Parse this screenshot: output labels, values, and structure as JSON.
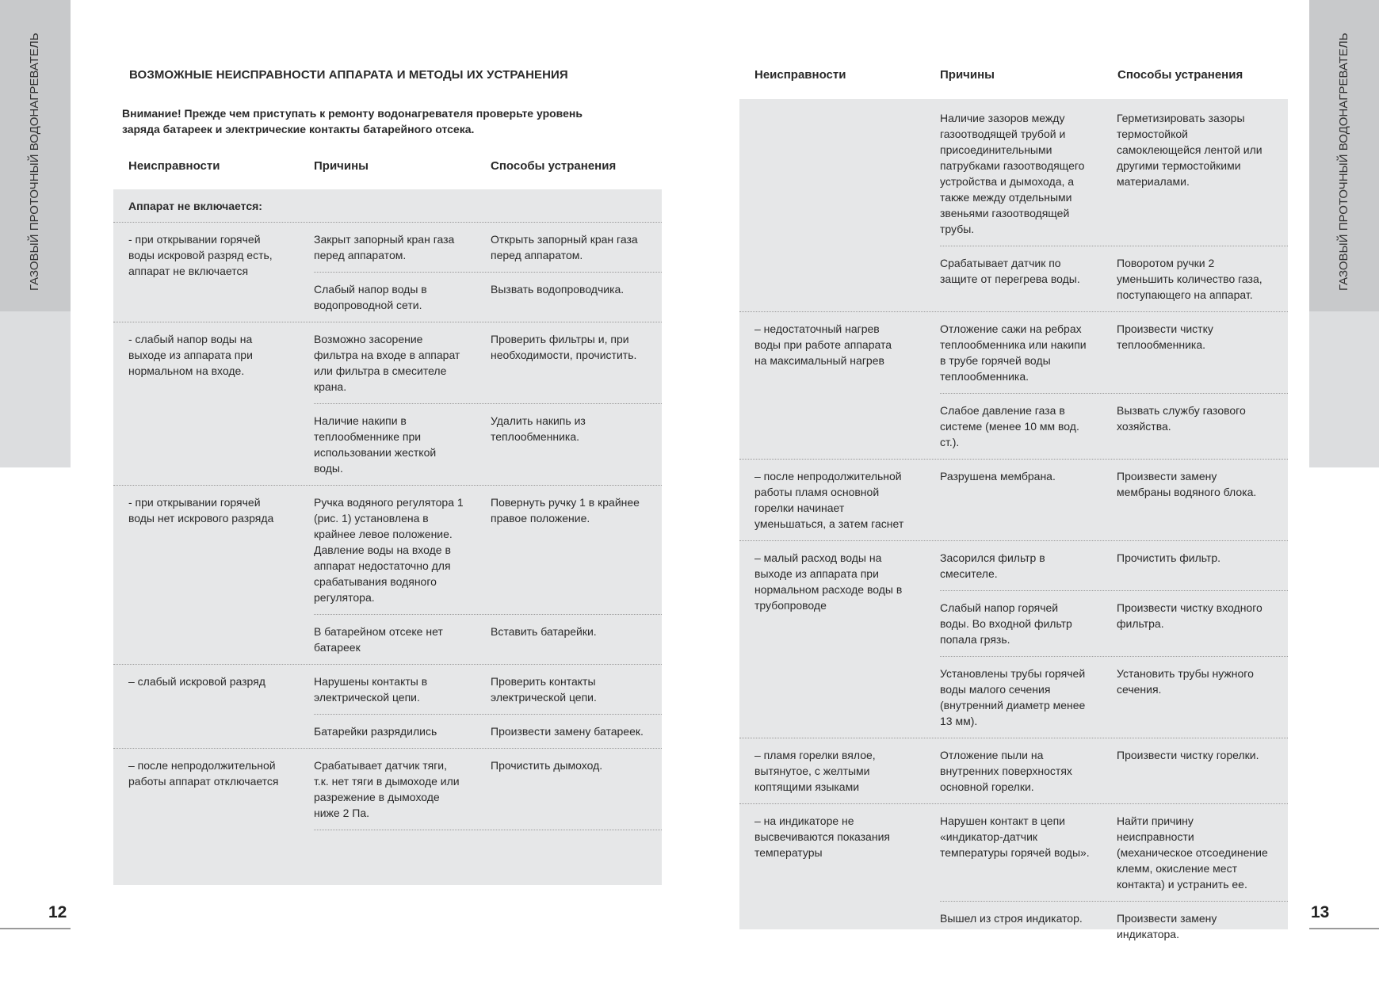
{
  "side_label": "ГАЗОВЫЙ ПРОТОЧНЫЙ ВОДОНАГРЕВАТЕЛЬ",
  "colors": {
    "panel": "#e6e7e8",
    "tab_dark": "#c8c9cb",
    "tab_light": "#dcdddf"
  },
  "left_page": {
    "page_number": "12",
    "title": "ВОЗМОЖНЫЕ НЕИСПРАВНОСТИ АППАРАТА И МЕТОДЫ ИХ УСТРАНЕНИЯ",
    "warning": "Внимание! Прежде чем приступать к ремонту водонагревателя проверьте уровень\nзаряда батареек и электрические контакты батарейного отсека.",
    "headers": [
      "Неисправности",
      "Причины",
      "Способы устранения"
    ],
    "section": "Аппарат не включается:",
    "groups": [
      {
        "fault": "- при открывании горячей\nводы искровой разряд есть,\nаппарат не включается",
        "rows": [
          {
            "cause": "Закрыт запорный кран газа\nперед аппаратом.",
            "remedy": "Открыть запорный кран газа\nперед аппаратом."
          },
          {
            "cause": "Слабый напор воды в\nводопроводной сети.",
            "remedy": "Вызвать водопроводчика."
          }
        ]
      },
      {
        "fault": "- слабый напор воды на\nвыходе из аппарата при\nнормальном на входе.",
        "rows": [
          {
            "cause": "Возможно засорение\nфильтра на входе в аппарат\nили фильтра в смесителе\nкрана.",
            "remedy": "Проверить фильтры и, при\nнеобходимости, прочистить."
          },
          {
            "cause": "Наличие накипи в\nтеплообменнике при\nиспользовании жесткой\nводы.",
            "remedy": "Удалить накипь из\nтеплообменника."
          }
        ]
      },
      {
        "fault": "- при открывании горячей\nводы нет искрового разряда",
        "rows": [
          {
            "cause": "Ручка водяного регулятора 1\n(рис. 1) установлена в\nкрайнее левое положение.\nДавление воды на входе в\nаппарат недостаточно для\nсрабатывания водяного\nрегулятора.",
            "remedy": "Повернуть ручку 1 в крайнее\nправое положение."
          },
          {
            "cause": "В батарейном отсеке нет\nбатареек",
            "remedy": "Вставить батарейки."
          }
        ]
      },
      {
        "fault": "– слабый искровой разряд",
        "rows": [
          {
            "cause": "Нарушены контакты в\nэлектрической цепи.",
            "remedy": "Проверить контакты\nэлектрической цепи."
          },
          {
            "cause": "Батарейки разрядились",
            "remedy": "Произвести замену батареек."
          }
        ]
      },
      {
        "fault": "– после непродолжительной\nработы аппарат отключается",
        "rows": [
          {
            "cause": "Срабатывает датчик тяги,\nт.к. нет тяги в дымоходе или\nразрежение в дымоходе\nниже 2 Па.",
            "remedy": "Прочистить дымоход."
          }
        ]
      }
    ]
  },
  "right_page": {
    "page_number": "13",
    "headers": [
      "Неисправности",
      "Причины",
      "Способы устранения"
    ],
    "groups": [
      {
        "fault": "",
        "rows": [
          {
            "cause": "Наличие зазоров между\nгазоотводящей трубой и\nприсоединительными\nпатрубками газоотводящего\nустройства  и дымохода, а\nтакже между отдельными\nзвеньями газоотводящей\nтрубы.",
            "remedy": "Герметизировать зазоры\nтермостойкой\nсамоклеющейся лентой или\nдругими термостойкими\nматериалами."
          },
          {
            "cause": "Срабатывает датчик по\nзащите от перегрева воды.",
            "remedy": "Поворотом ручки 2\nуменьшить количество газа,\nпоступающего на аппарат."
          }
        ]
      },
      {
        "fault": "– недостаточный нагрев\nводы при работе аппарата\nна максимальный нагрев",
        "rows": [
          {
            "cause": "Отложение сажи на ребрах\nтеплообменника или накипи\nв трубе горячей воды\nтеплообменника.",
            "remedy": "Произвести чистку\nтеплообменника."
          },
          {
            "cause": "Слабое давление газа в\nсистеме (менее 10 мм вод.\nст.).",
            "remedy": "Вызвать службу газового\nхозяйства."
          }
        ]
      },
      {
        "fault": "– после непродолжительной\nработы пламя основной\nгорелки начинает\nуменьшаться, а затем гаснет",
        "rows": [
          {
            "cause": "Разрушена мембрана.",
            "remedy": "Произвести замену\nмембраны водяного блока."
          }
        ]
      },
      {
        "fault": "– малый расход воды на\nвыходе из аппарата при\nнормальном расходе воды в\nтрубопроводе",
        "rows": [
          {
            "cause": "Засорился фильтр в\nсмесителе.",
            "remedy": "Прочистить фильтр."
          },
          {
            "cause": "Слабый напор горячей\nводы. Во входной фильтр\nпопала грязь.",
            "remedy": "Произвести чистку входного\nфильтра."
          },
          {
            "cause": "Установлены трубы горячей\nводы малого сечения\n(внутренний диаметр менее\n13 мм).",
            "remedy": "Установить трубы нужного\nсечения."
          }
        ]
      },
      {
        "fault": "– пламя горелки вялое,\nвытянутое, с желтыми\nкоптящими языками",
        "rows": [
          {
            "cause": "Отложение пыли на\nвнутренних поверхностях\nосновной горелки.",
            "remedy": "Произвести чистку горелки."
          }
        ]
      },
      {
        "fault": "– на индикаторе не\nвысвечиваются показания\nтемпературы",
        "rows": [
          {
            "cause": "Нарушен контакт в цепи\n«индикатор-датчик\nтемпературы горячей воды».",
            "remedy": "Найти причину\nнеисправности\n(механическое отсоединение\nклемм, окисление мест\nконтакта) и устранить ее."
          },
          {
            "cause": "Вышел из строя индикатор.",
            "remedy": "Произвести замену\nиндикатора."
          }
        ]
      }
    ]
  }
}
